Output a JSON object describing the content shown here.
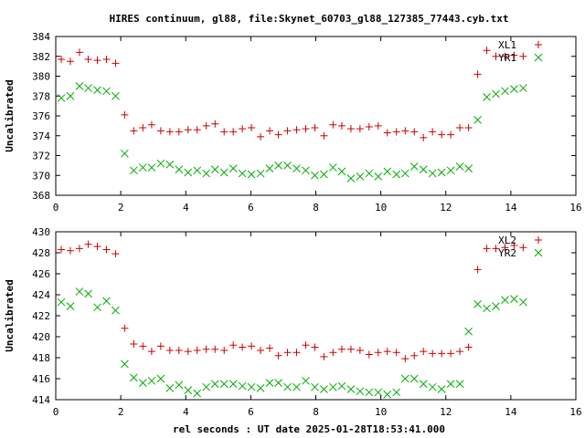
{
  "title": "HIRES continuum, gl88, file:Skynet_60703_gl88_127385_77443.cyb.txt",
  "xlabel": "rel seconds : UT date 2025-01-28T18:53:41.000",
  "chart_data": [
    {
      "type": "scatter",
      "ylabel": "Uncalibrated",
      "xlim": [
        0,
        16
      ],
      "ylim": [
        368,
        384
      ],
      "xticks": [
        0,
        2,
        4,
        6,
        8,
        10,
        12,
        14,
        16
      ],
      "yticks": [
        368,
        370,
        372,
        374,
        376,
        378,
        380,
        382,
        384
      ],
      "grid": false,
      "legend_position": "top-right",
      "series": [
        {
          "name": "XL1",
          "color": "#cc0000",
          "marker": "plus",
          "x": [
            0.17,
            0.45,
            0.73,
            1.0,
            1.28,
            1.56,
            1.84,
            2.12,
            2.4,
            2.68,
            2.95,
            3.23,
            3.51,
            3.79,
            4.07,
            4.35,
            4.63,
            4.9,
            5.18,
            5.46,
            5.74,
            6.02,
            6.3,
            6.58,
            6.85,
            7.13,
            7.41,
            7.69,
            7.97,
            8.25,
            8.53,
            8.8,
            9.08,
            9.36,
            9.64,
            9.92,
            10.2,
            10.48,
            10.75,
            11.03,
            11.31,
            11.59,
            11.87,
            12.15,
            12.43,
            12.7,
            12.98,
            13.26,
            13.54,
            13.82,
            14.1,
            14.38
          ],
          "y": [
            381.7,
            381.5,
            382.4,
            381.7,
            381.6,
            381.7,
            381.3,
            376.1,
            374.5,
            374.8,
            375.1,
            374.5,
            374.4,
            374.4,
            374.6,
            374.6,
            375.0,
            375.2,
            374.4,
            374.4,
            374.7,
            374.8,
            373.9,
            374.5,
            374.1,
            374.5,
            374.6,
            374.7,
            374.8,
            374.0,
            375.1,
            375.0,
            374.7,
            374.7,
            374.9,
            375.0,
            374.3,
            374.4,
            374.5,
            374.4,
            373.8,
            374.4,
            374.1,
            374.1,
            374.8,
            374.8,
            380.2,
            382.6,
            382.0,
            382.0,
            382.1,
            382.0
          ]
        },
        {
          "name": "YR1",
          "color": "#00aa00",
          "marker": "cross",
          "x": [
            0.17,
            0.45,
            0.73,
            1.0,
            1.28,
            1.56,
            1.84,
            2.12,
            2.4,
            2.68,
            2.95,
            3.23,
            3.51,
            3.79,
            4.07,
            4.35,
            4.63,
            4.9,
            5.18,
            5.46,
            5.74,
            6.02,
            6.3,
            6.58,
            6.85,
            7.13,
            7.41,
            7.69,
            7.97,
            8.25,
            8.53,
            8.8,
            9.08,
            9.36,
            9.64,
            9.92,
            10.2,
            10.48,
            10.75,
            11.03,
            11.31,
            11.59,
            11.87,
            12.15,
            12.43,
            12.7,
            12.98,
            13.26,
            13.54,
            13.82,
            14.1,
            14.38
          ],
          "y": [
            377.8,
            378.0,
            379.0,
            378.8,
            378.6,
            378.5,
            378.0,
            372.2,
            370.5,
            370.8,
            370.8,
            371.2,
            371.1,
            370.6,
            370.3,
            370.5,
            370.2,
            370.6,
            370.3,
            370.7,
            370.2,
            370.1,
            370.2,
            370.7,
            371.0,
            371.0,
            370.7,
            370.5,
            370.0,
            370.1,
            370.8,
            370.4,
            369.7,
            369.9,
            370.2,
            369.9,
            370.4,
            370.1,
            370.2,
            370.9,
            370.6,
            370.2,
            370.3,
            370.5,
            370.9,
            370.7,
            375.6,
            377.9,
            378.2,
            378.5,
            378.7,
            378.8
          ]
        }
      ]
    },
    {
      "type": "scatter",
      "ylabel": "Uncalibrated",
      "xlim": [
        0,
        16
      ],
      "ylim": [
        414,
        430
      ],
      "xticks": [
        0,
        2,
        4,
        6,
        8,
        10,
        12,
        14,
        16
      ],
      "yticks": [
        414,
        416,
        418,
        420,
        422,
        424,
        426,
        428,
        430
      ],
      "grid": false,
      "legend_position": "top-right",
      "series": [
        {
          "name": "XL2",
          "color": "#cc0000",
          "marker": "plus",
          "x": [
            0.17,
            0.45,
            0.73,
            1.0,
            1.28,
            1.56,
            1.84,
            2.12,
            2.4,
            2.68,
            2.95,
            3.23,
            3.51,
            3.79,
            4.07,
            4.35,
            4.63,
            4.9,
            5.18,
            5.46,
            5.74,
            6.02,
            6.3,
            6.58,
            6.85,
            7.13,
            7.41,
            7.69,
            7.97,
            8.25,
            8.53,
            8.8,
            9.08,
            9.36,
            9.64,
            9.92,
            10.2,
            10.48,
            10.75,
            11.03,
            11.31,
            11.59,
            11.87,
            12.15,
            12.43,
            12.7,
            12.98,
            13.26,
            13.54,
            13.82,
            14.1,
            14.38
          ],
          "y": [
            428.3,
            428.2,
            428.4,
            428.8,
            428.6,
            428.3,
            427.9,
            420.8,
            419.3,
            419.1,
            418.6,
            419.1,
            418.7,
            418.7,
            418.6,
            418.7,
            418.8,
            418.8,
            418.7,
            419.2,
            419.0,
            419.1,
            418.7,
            418.9,
            418.2,
            418.5,
            418.5,
            419.2,
            419.0,
            418.1,
            418.5,
            418.8,
            418.8,
            418.7,
            418.3,
            418.5,
            418.6,
            418.5,
            417.9,
            418.2,
            418.6,
            418.4,
            418.4,
            418.4,
            418.6,
            419.0,
            426.4,
            428.4,
            428.4,
            428.5,
            428.7,
            428.5
          ]
        },
        {
          "name": "YR2",
          "color": "#00aa00",
          "marker": "cross",
          "x": [
            0.17,
            0.45,
            0.73,
            1.0,
            1.28,
            1.56,
            1.84,
            2.12,
            2.4,
            2.68,
            2.95,
            3.23,
            3.51,
            3.79,
            4.07,
            4.35,
            4.63,
            4.9,
            5.18,
            5.46,
            5.74,
            6.02,
            6.3,
            6.58,
            6.85,
            7.13,
            7.41,
            7.69,
            7.97,
            8.25,
            8.53,
            8.8,
            9.08,
            9.36,
            9.64,
            9.92,
            10.2,
            10.48,
            10.75,
            11.03,
            11.31,
            11.59,
            11.87,
            12.15,
            12.43,
            12.7,
            12.98,
            13.26,
            13.54,
            13.82,
            14.1,
            14.38
          ],
          "y": [
            423.3,
            422.9,
            424.3,
            424.1,
            422.8,
            423.4,
            422.5,
            417.4,
            416.1,
            415.6,
            415.8,
            416.0,
            415.1,
            415.4,
            414.9,
            414.6,
            415.2,
            415.5,
            415.5,
            415.5,
            415.3,
            415.2,
            415.1,
            415.6,
            415.6,
            415.2,
            415.2,
            415.8,
            415.2,
            415.0,
            415.2,
            415.3,
            415.0,
            414.8,
            414.7,
            414.7,
            414.5,
            414.7,
            416.0,
            416.0,
            415.5,
            415.2,
            415.0,
            415.5,
            415.5,
            420.5,
            423.1,
            422.7,
            422.9,
            423.5,
            423.6,
            423.3
          ]
        }
      ]
    }
  ]
}
